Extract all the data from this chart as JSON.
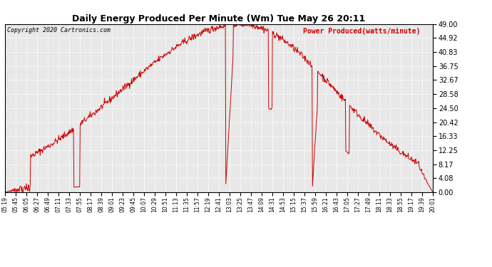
{
  "title": "Daily Energy Produced Per Minute (Wm) Tue May 26 20:11",
  "legend_label": "Power Produced(watts/minute)",
  "copyright": "Copyright 2020 Cartronics.com",
  "background_color": "#ffffff",
  "plot_bg_color": "#e8e8e8",
  "grid_color": "#ffffff",
  "line_color": "#cc0000",
  "title_color": "#000000",
  "legend_color": "#cc0000",
  "copyright_color": "#000000",
  "yticks": [
    0.0,
    4.08,
    8.17,
    12.25,
    16.33,
    20.42,
    24.5,
    28.58,
    32.67,
    36.75,
    40.83,
    44.92,
    49.0
  ],
  "ylim": [
    0,
    49.0
  ],
  "xtick_labels": [
    "05:19",
    "05:45",
    "06:05",
    "06:27",
    "06:49",
    "07:11",
    "07:33",
    "07:55",
    "08:17",
    "08:39",
    "09:01",
    "09:23",
    "09:45",
    "10:07",
    "10:29",
    "10:51",
    "11:13",
    "11:35",
    "11:57",
    "12:19",
    "12:41",
    "13:03",
    "13:25",
    "13:47",
    "14:09",
    "14:31",
    "14:53",
    "15:15",
    "15:37",
    "15:59",
    "16:21",
    "16:43",
    "17:05",
    "17:27",
    "17:49",
    "18:11",
    "18:33",
    "18:55",
    "19:17",
    "19:39",
    "20:01"
  ],
  "num_points": 900
}
